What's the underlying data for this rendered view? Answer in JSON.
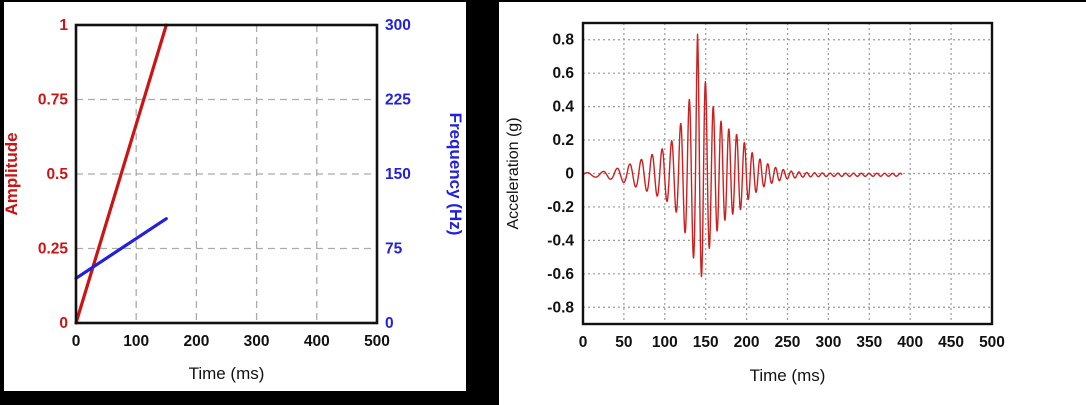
{
  "page": {
    "background": "#ffffff",
    "frame_color": "#000000"
  },
  "chart_data": [
    {
      "id": "sweep-profile",
      "type": "line",
      "title": "",
      "xlabel": "Time (ms)",
      "xlim": [
        0,
        500
      ],
      "xticks": [
        0,
        100,
        200,
        300,
        400,
        500
      ],
      "xtick_labels": [
        "0",
        "100",
        "200",
        "300",
        "400",
        "500"
      ],
      "grid": "dashed",
      "legend": "none",
      "left_axis": {
        "label": "Amplitude",
        "color": "#cc1414",
        "lim": [
          0,
          1
        ],
        "ticks": [
          0,
          0.25,
          0.5,
          0.75,
          1
        ],
        "tick_labels": [
          "0",
          "0.25",
          "0.5",
          "0.75",
          "1"
        ]
      },
      "right_axis": {
        "label": "Frequency (Hz)",
        "color": "#2121dd",
        "lim": [
          0,
          300
        ],
        "ticks": [
          0,
          75,
          150,
          225,
          300
        ],
        "tick_labels": [
          "0",
          "75",
          "150",
          "225",
          "300"
        ]
      },
      "series": [
        {
          "name": "amplitude-ramp",
          "axis": "left",
          "color": "#cc1414",
          "width": 3.2,
          "points": [
            [
              0,
              0
            ],
            [
              150,
              1
            ]
          ]
        },
        {
          "name": "frequency-sweep",
          "axis": "right",
          "color": "#2121dd",
          "width": 3.2,
          "points": [
            [
              0,
              45
            ],
            [
              150,
              105
            ]
          ]
        }
      ]
    },
    {
      "id": "acceleration-response",
      "type": "line",
      "title": "",
      "xlabel": "Time (ms)",
      "ylabel": "Acceleration (g)",
      "xlim": [
        0,
        500
      ],
      "ylim": [
        -0.9,
        0.9
      ],
      "xticks": [
        0,
        50,
        100,
        150,
        200,
        250,
        300,
        350,
        400,
        450,
        500
      ],
      "xtick_labels": [
        "0",
        "50",
        "100",
        "150",
        "200",
        "250",
        "300",
        "350",
        "400",
        "450",
        "500"
      ],
      "yticks": [
        0.8,
        0.6,
        0.4,
        0.2,
        0,
        -0.2,
        -0.4,
        -0.6,
        -0.8
      ],
      "ytick_labels": [
        "0.8",
        "0.6",
        "0.4",
        "0.2",
        "0",
        "-0.2",
        "-0.4",
        "-0.6",
        "-0.8"
      ],
      "grid": "dotted",
      "legend": "none",
      "series": [
        {
          "name": "acceleration-signal",
          "color": "#cc2020",
          "width": 1.4,
          "signal": {
            "t_start": 0,
            "t_end": 390,
            "dt": 0.4,
            "dc": -0.008,
            "sweep_hz": [
              45,
              105
            ],
            "sweep_ms": [
              0,
              150
            ],
            "neg_scale": 0.92,
            "peak_positive_g": 0.82,
            "peak_negative_g": -0.75,
            "peak_time_ms": 140,
            "envelope": [
              [
                0,
                0.012
              ],
              [
                20,
                0.016
              ],
              [
                35,
                0.03
              ],
              [
                50,
                0.05
              ],
              [
                65,
                0.08
              ],
              [
                80,
                0.11
              ],
              [
                95,
                0.15
              ],
              [
                105,
                0.18
              ],
              [
                115,
                0.25
              ],
              [
                125,
                0.38
              ],
              [
                132,
                0.48
              ],
              [
                137,
                0.58
              ],
              [
                140,
                0.84
              ],
              [
                144,
                0.68
              ],
              [
                150,
                0.55
              ],
              [
                158,
                0.42
              ],
              [
                170,
                0.31
              ],
              [
                182,
                0.26
              ],
              [
                192,
                0.23
              ],
              [
                205,
                0.14
              ],
              [
                220,
                0.08
              ],
              [
                235,
                0.045
              ],
              [
                250,
                0.025
              ],
              [
                270,
                0.014
              ],
              [
                300,
                0.01
              ],
              [
                390,
                0.009
              ]
            ]
          }
        }
      ]
    }
  ]
}
